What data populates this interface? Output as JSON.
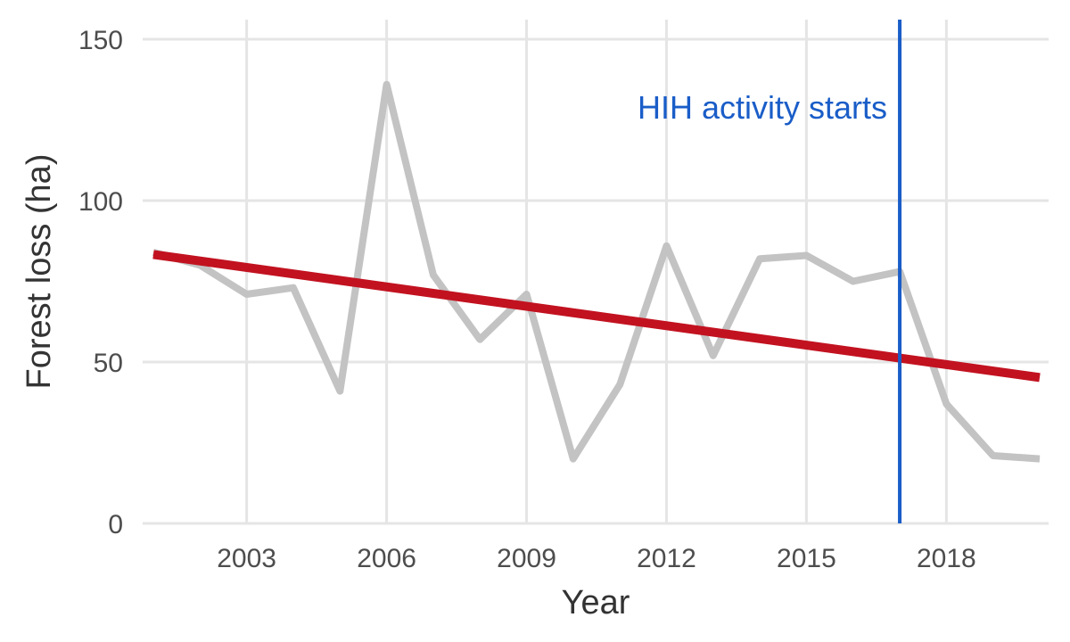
{
  "chart_data": {
    "type": "line",
    "title": "",
    "xlabel": "Year",
    "ylabel": "Forest loss (ha)",
    "xlim": [
      2001,
      2020
    ],
    "ylim": [
      0,
      150
    ],
    "x_ticks": [
      2003,
      2006,
      2009,
      2012,
      2015,
      2018
    ],
    "y_ticks": [
      0,
      50,
      100,
      150
    ],
    "grid": true,
    "legend": "none",
    "series": [
      {
        "x": [
          2001,
          2002,
          2003,
          2004,
          2005,
          2006,
          2007,
          2008,
          2009,
          2010,
          2011,
          2012,
          2013,
          2014,
          2015,
          2016,
          2017,
          2018,
          2019,
          2020
        ],
        "values": [
          84,
          80,
          71,
          73,
          41,
          136,
          77,
          57,
          71,
          20,
          43,
          86,
          52,
          82,
          83,
          75,
          78,
          37,
          21,
          20
        ],
        "color": "#c3c3c3"
      }
    ],
    "trend_line": {
      "x": [
        2001,
        2020
      ],
      "y": [
        83.3,
        45.2
      ],
      "color": "#c21220"
    },
    "annotation": {
      "x": 2017,
      "text": "HIH activity starts",
      "color": "#1a5dc8"
    }
  }
}
